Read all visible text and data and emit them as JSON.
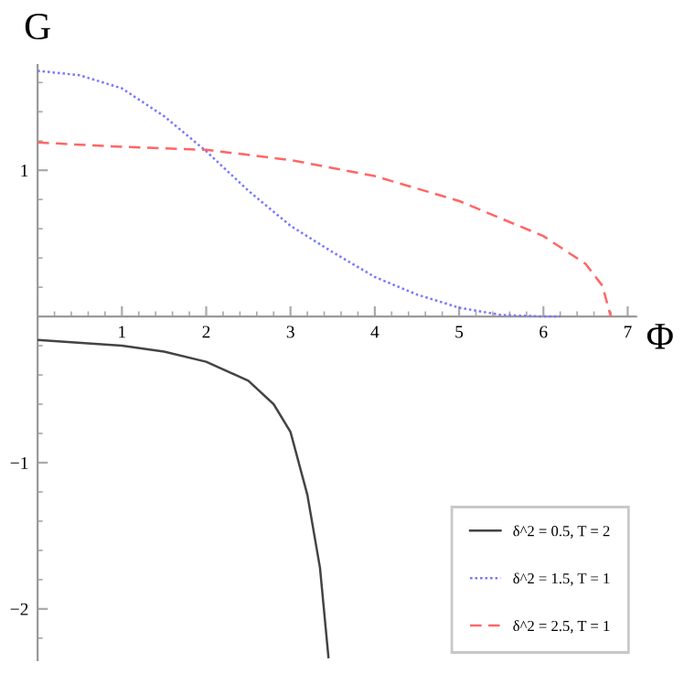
{
  "chart_data": {
    "type": "line",
    "xlabel": "Φ",
    "ylabel": "G",
    "xlim": [
      0,
      7.1
    ],
    "ylim": [
      -2.35,
      1.72
    ],
    "xticks": [
      1,
      2,
      3,
      4,
      5,
      6,
      7
    ],
    "yticks": [
      -2,
      -1,
      1
    ],
    "grid": false,
    "legend": "bottom right",
    "marker": "none",
    "series": [
      {
        "name": "δ^2 = 0.5, T = 2",
        "color": "#444444",
        "line_style": "solid",
        "x": [
          0,
          1,
          1.5,
          2,
          2.5,
          2.8,
          3.0,
          3.2,
          3.35,
          3.45
        ],
        "values": [
          -0.16,
          -0.2,
          -0.24,
          -0.31,
          -0.44,
          -0.6,
          -0.79,
          -1.22,
          -1.72,
          -2.33
        ]
      },
      {
        "name": "δ^2 = 1.5, T = 1",
        "color": "#7777ff",
        "line_style": "dotted",
        "x": [
          0,
          0.5,
          1,
          1.5,
          2,
          2.5,
          3,
          3.5,
          4,
          4.5,
          5,
          5.5,
          6,
          6.2
        ],
        "values": [
          1.68,
          1.65,
          1.56,
          1.37,
          1.13,
          0.86,
          0.62,
          0.44,
          0.27,
          0.15,
          0.06,
          0.01,
          0,
          0
        ]
      },
      {
        "name": "δ^2 = 2.5, T = 1",
        "color": "#ff6666",
        "line_style": "dashed",
        "x": [
          0,
          1,
          2,
          3,
          4,
          5,
          6,
          6.5,
          6.7,
          6.8
        ],
        "values": [
          1.19,
          1.16,
          1.14,
          1.07,
          0.96,
          0.79,
          0.55,
          0.36,
          0.21,
          0
        ]
      }
    ]
  }
}
